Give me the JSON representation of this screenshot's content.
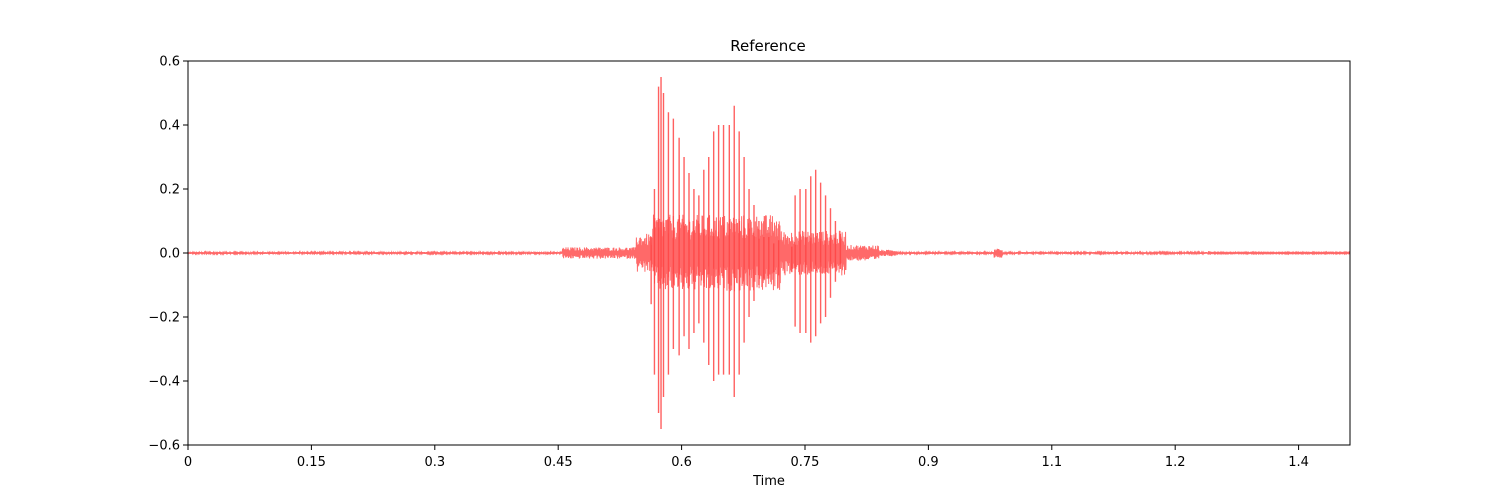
{
  "chart_data": {
    "type": "line",
    "title": "Reference",
    "xlabel": "Time",
    "ylabel": "",
    "xlim": [
      0,
      1.4125
    ],
    "ylim": [
      -0.6,
      0.6
    ],
    "x_ticks": [
      {
        "value": 0,
        "label": "0"
      },
      {
        "value": 0.15,
        "label": "0.15"
      },
      {
        "value": 0.3,
        "label": "0.3"
      },
      {
        "value": 0.45,
        "label": "0.45"
      },
      {
        "value": 0.6,
        "label": "0.6"
      },
      {
        "value": 0.75,
        "label": "0.75"
      },
      {
        "value": 0.9,
        "label": "0.9"
      },
      {
        "value": 1.05,
        "label": "1.1"
      },
      {
        "value": 1.2,
        "label": "1.2"
      },
      {
        "value": 1.35,
        "label": "1.4"
      }
    ],
    "y_ticks": [
      {
        "value": -0.6,
        "label": "−0.6"
      },
      {
        "value": -0.4,
        "label": "−0.4"
      },
      {
        "value": -0.2,
        "label": "−0.2"
      },
      {
        "value": 0.0,
        "label": "0.0"
      },
      {
        "value": 0.2,
        "label": "0.2"
      },
      {
        "value": 0.4,
        "label": "0.4"
      },
      {
        "value": 0.6,
        "label": "0.6"
      }
    ],
    "grid": false,
    "color": "#ff4444",
    "series": [
      {
        "pulses": [
          [
            0.563,
            0.05,
            -0.16
          ],
          [
            0.567,
            0.2,
            -0.38
          ],
          [
            0.572,
            0.52,
            -0.5
          ],
          [
            0.575,
            0.55,
            -0.55
          ],
          [
            0.578,
            0.5,
            -0.45
          ],
          [
            0.584,
            0.44,
            -0.38
          ],
          [
            0.59,
            0.42,
            -0.3
          ],
          [
            0.597,
            0.36,
            -0.32
          ],
          [
            0.603,
            0.3,
            -0.26
          ],
          [
            0.609,
            0.25,
            -0.3
          ],
          [
            0.615,
            0.2,
            -0.25
          ],
          [
            0.621,
            0.18,
            -0.22
          ],
          [
            0.627,
            0.26,
            -0.28
          ],
          [
            0.633,
            0.3,
            -0.35
          ],
          [
            0.639,
            0.38,
            -0.4
          ],
          [
            0.645,
            0.4,
            -0.38
          ],
          [
            0.651,
            0.4,
            -0.38
          ],
          [
            0.658,
            0.4,
            -0.38
          ],
          [
            0.664,
            0.46,
            -0.45
          ],
          [
            0.67,
            0.38,
            -0.38
          ],
          [
            0.676,
            0.3,
            -0.28
          ],
          [
            0.682,
            0.2,
            -0.2
          ],
          [
            0.688,
            0.15,
            -0.15
          ],
          [
            0.694,
            0.1,
            -0.1
          ],
          [
            0.7,
            0.05,
            -0.08
          ],
          [
            0.706,
            0.05,
            -0.08
          ],
          [
            0.712,
            0.03,
            -0.06
          ],
          [
            0.718,
            0.04,
            -0.07
          ],
          [
            0.734,
            0.02,
            -0.06
          ],
          [
            0.738,
            0.18,
            -0.23
          ],
          [
            0.744,
            0.2,
            -0.25
          ],
          [
            0.751,
            0.2,
            -0.25
          ],
          [
            0.757,
            0.24,
            -0.28
          ],
          [
            0.763,
            0.26,
            -0.26
          ],
          [
            0.769,
            0.22,
            -0.22
          ],
          [
            0.775,
            0.18,
            -0.2
          ],
          [
            0.781,
            0.14,
            -0.14
          ],
          [
            0.787,
            0.1,
            -0.09
          ],
          [
            0.793,
            0.06,
            -0.05
          ]
        ],
        "noise_regions": [
          [
            0.0,
            0.455,
            0.003
          ],
          [
            0.455,
            0.545,
            0.018
          ],
          [
            0.545,
            0.565,
            0.06
          ],
          [
            0.565,
            0.72,
            0.12
          ],
          [
            0.72,
            0.8,
            0.07
          ],
          [
            0.8,
            0.84,
            0.025
          ],
          [
            0.84,
            0.86,
            0.01
          ],
          [
            0.86,
            0.98,
            0.003
          ],
          [
            0.98,
            0.99,
            0.015
          ],
          [
            0.99,
            1.24,
            0.003
          ],
          [
            1.24,
            1.245,
            0.006
          ],
          [
            1.245,
            1.4125,
            0.002
          ]
        ]
      }
    ]
  }
}
